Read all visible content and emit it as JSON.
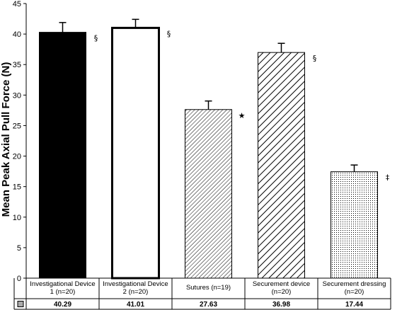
{
  "chart_data": {
    "type": "bar",
    "ylabel": "Mean Peak Axial Pull Force (N)",
    "ylim": [
      0,
      45
    ],
    "yticks": [
      0,
      5,
      10,
      15,
      20,
      25,
      30,
      35,
      40,
      45
    ],
    "categories": [
      [
        "Investigational Device",
        "1 (n=20)"
      ],
      [
        "Investigational Device",
        "2 (n=20)"
      ],
      [
        "Sutures (n=19)"
      ],
      [
        "Securement device",
        "(n=20)"
      ],
      [
        "Securement dressing",
        "(n=20)"
      ]
    ],
    "values": [
      40.29,
      41.01,
      27.63,
      36.98,
      17.44
    ],
    "value_labels": [
      "40.29",
      "41.01",
      "27.63",
      "36.98",
      "17.44"
    ],
    "errors": [
      1.6,
      1.4,
      1.4,
      1.5,
      1.1
    ],
    "annotations": [
      "§",
      "§",
      "★",
      "§",
      "‡"
    ],
    "fills": [
      "solid-black",
      "white",
      "dense-diagonal-hatch",
      "wide-diagonal-hatch",
      "dots"
    ],
    "grid": false
  }
}
